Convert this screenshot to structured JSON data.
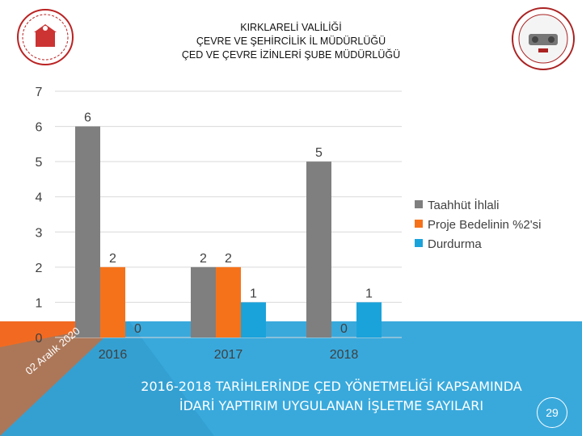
{
  "header": {
    "line1": "KIRKLARELİ VALİLİĞİ",
    "line2": "ÇEVRE VE ŞEHİRCİLİK İL MÜDÜRLÜĞÜ",
    "line3": "ÇED VE ÇEVRE İZİNLERİ ŞUBE MÜDÜRLÜĞÜ",
    "logo_left": "valilik-emblem-icon",
    "logo_right": "kirklareli-city-seal-icon"
  },
  "chart_data": {
    "type": "bar",
    "categories": [
      "2016",
      "2017",
      "2018"
    ],
    "series": [
      {
        "name": "Taahhüt İhlali",
        "values": [
          6,
          2,
          5
        ],
        "color": "#7f7f7f"
      },
      {
        "name": "Proje Bedelinin %2'si",
        "values": [
          2,
          2,
          0
        ],
        "color": "#f5721a"
      },
      {
        "name": "Durdurma",
        "values": [
          0,
          1,
          1
        ],
        "color": "#1aa3db"
      }
    ],
    "ylim": [
      0,
      7
    ],
    "yticks": [
      "0",
      "1",
      "2",
      "3",
      "4",
      "5",
      "6",
      "7"
    ],
    "grid": true,
    "legend": "right"
  },
  "footer": {
    "caption_line1": "2016-2018 TARİHLERİNDE ÇED YÖNETMELİĞİ KAPSAMINDA",
    "caption_line2": "İDARİ YAPTIRIM UYGULANAN İŞLETME SAYILARI",
    "page_number": "29",
    "date": "02 Aralık 2020",
    "colors": {
      "blue": "#39a9dc",
      "orange": "#f26a21"
    }
  }
}
